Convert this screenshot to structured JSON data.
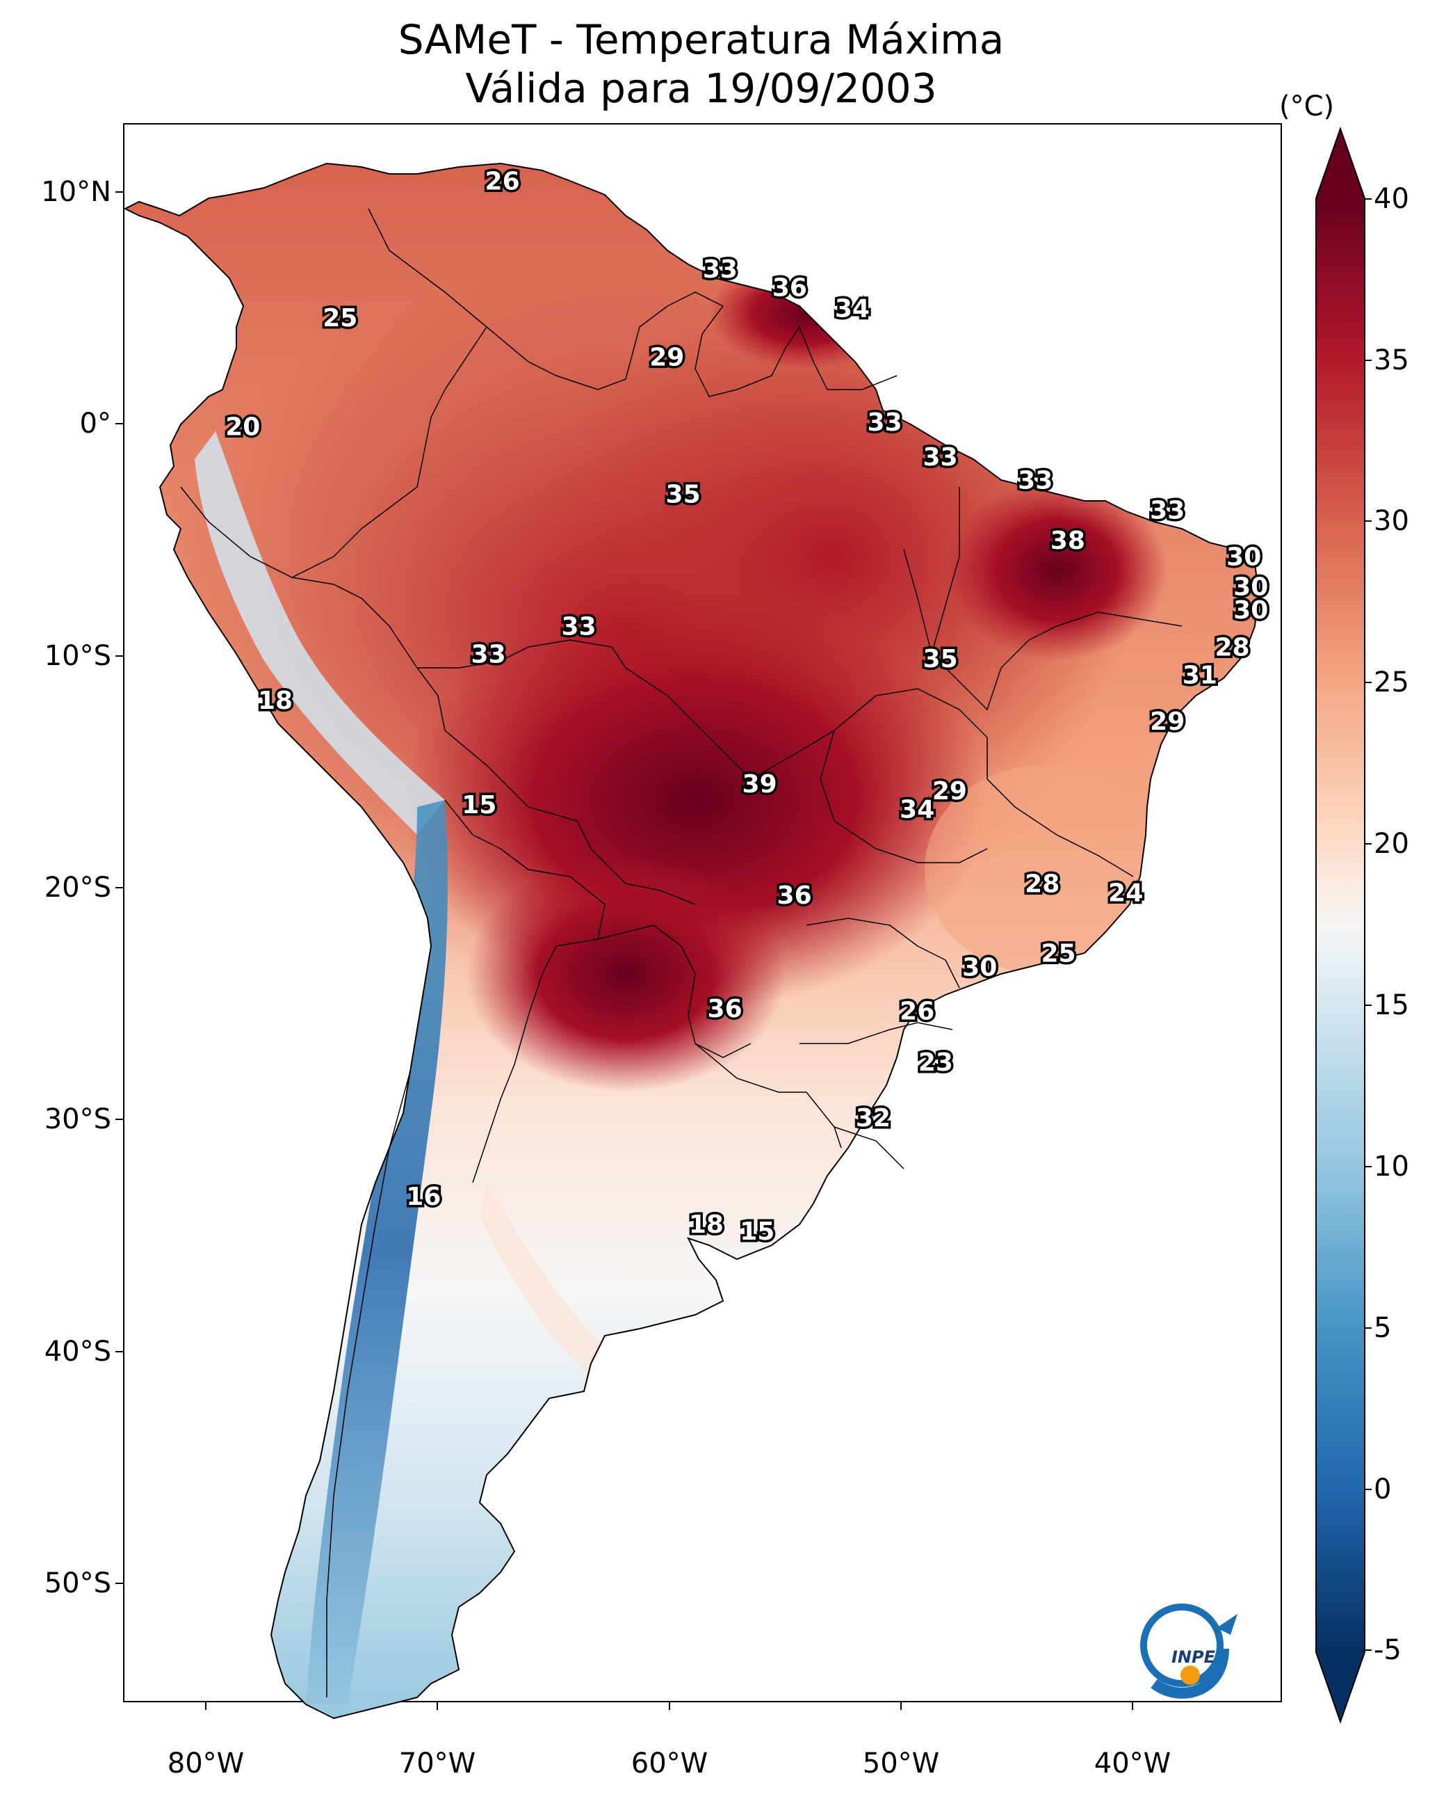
{
  "title": {
    "line1": "SAMeT - Temperatura Máxima",
    "line2": "Válida para 19/09/2003"
  },
  "axes": {
    "latitude_labels": [
      "10°N",
      "0°",
      "10°S",
      "20°S",
      "30°S",
      "40°S",
      "50°S"
    ],
    "longitude_labels": [
      "80°W",
      "70°W",
      "60°W",
      "50°W",
      "40°W"
    ]
  },
  "colorbar": {
    "units": "(°C)",
    "min": -5,
    "max": 40,
    "ticks": [
      "40",
      "35",
      "30",
      "25",
      "20",
      "15",
      "10",
      "5",
      "0",
      "-5"
    ],
    "colors": {
      "hot": "#67001f",
      "warm": "#d6604d",
      "neutral": "#f7f7f7",
      "cool": "#4393c3",
      "cold": "#053061"
    }
  },
  "station_labels": [
    {
      "text": "26",
      "lat": 10.4,
      "lon": -67.2
    },
    {
      "text": "33",
      "lat": 6.6,
      "lon": -57.8
    },
    {
      "text": "36",
      "lat": 5.8,
      "lon": -54.8
    },
    {
      "text": "34",
      "lat": 4.9,
      "lon": -52.1
    },
    {
      "text": "25",
      "lat": 4.5,
      "lon": -74.2
    },
    {
      "text": "29",
      "lat": 2.8,
      "lon": -60.1
    },
    {
      "text": "33",
      "lat": 0.0,
      "lon": -50.7
    },
    {
      "text": "20",
      "lat": -0.2,
      "lon": -78.4
    },
    {
      "text": "33",
      "lat": -1.5,
      "lon": -48.3
    },
    {
      "text": "33",
      "lat": -2.5,
      "lon": -44.2
    },
    {
      "text": "35",
      "lat": -3.1,
      "lon": -59.4
    },
    {
      "text": "33",
      "lat": -3.8,
      "lon": -38.5
    },
    {
      "text": "38",
      "lat": -5.1,
      "lon": -42.8
    },
    {
      "text": "30",
      "lat": -5.8,
      "lon": -35.2
    },
    {
      "text": "30",
      "lat": -7.1,
      "lon": -34.9
    },
    {
      "text": "30",
      "lat": -8.1,
      "lon": -34.9
    },
    {
      "text": "33",
      "lat": -8.8,
      "lon": -63.9
    },
    {
      "text": "33",
      "lat": -10.0,
      "lon": -67.8
    },
    {
      "text": "28",
      "lat": -9.7,
      "lon": -35.7
    },
    {
      "text": "35",
      "lat": -10.2,
      "lon": -48.3
    },
    {
      "text": "31",
      "lat": -10.9,
      "lon": -37.1
    },
    {
      "text": "18",
      "lat": -12.0,
      "lon": -77.0
    },
    {
      "text": "29",
      "lat": -12.9,
      "lon": -38.5
    },
    {
      "text": "39",
      "lat": -15.6,
      "lon": -56.1
    },
    {
      "text": "29",
      "lat": -15.9,
      "lon": -47.9
    },
    {
      "text": "15",
      "lat": -16.5,
      "lon": -68.2
    },
    {
      "text": "34",
      "lat": -16.7,
      "lon": -49.3
    },
    {
      "text": "28",
      "lat": -19.9,
      "lon": -43.9
    },
    {
      "text": "24",
      "lat": -20.3,
      "lon": -40.3
    },
    {
      "text": "36",
      "lat": -20.4,
      "lon": -54.6
    },
    {
      "text": "25",
      "lat": -22.9,
      "lon": -43.2
    },
    {
      "text": "30",
      "lat": -23.5,
      "lon": -46.6
    },
    {
      "text": "36",
      "lat": -25.3,
      "lon": -57.6
    },
    {
      "text": "26",
      "lat": -25.4,
      "lon": -49.3
    },
    {
      "text": "23",
      "lat": -27.6,
      "lon": -48.5
    },
    {
      "text": "32",
      "lat": -30.0,
      "lon": -51.2
    },
    {
      "text": "16",
      "lat": -33.4,
      "lon": -70.6
    },
    {
      "text": "18",
      "lat": -34.6,
      "lon": -58.4
    },
    {
      "text": "15",
      "lat": -34.9,
      "lon": -56.2
    }
  ]
}
